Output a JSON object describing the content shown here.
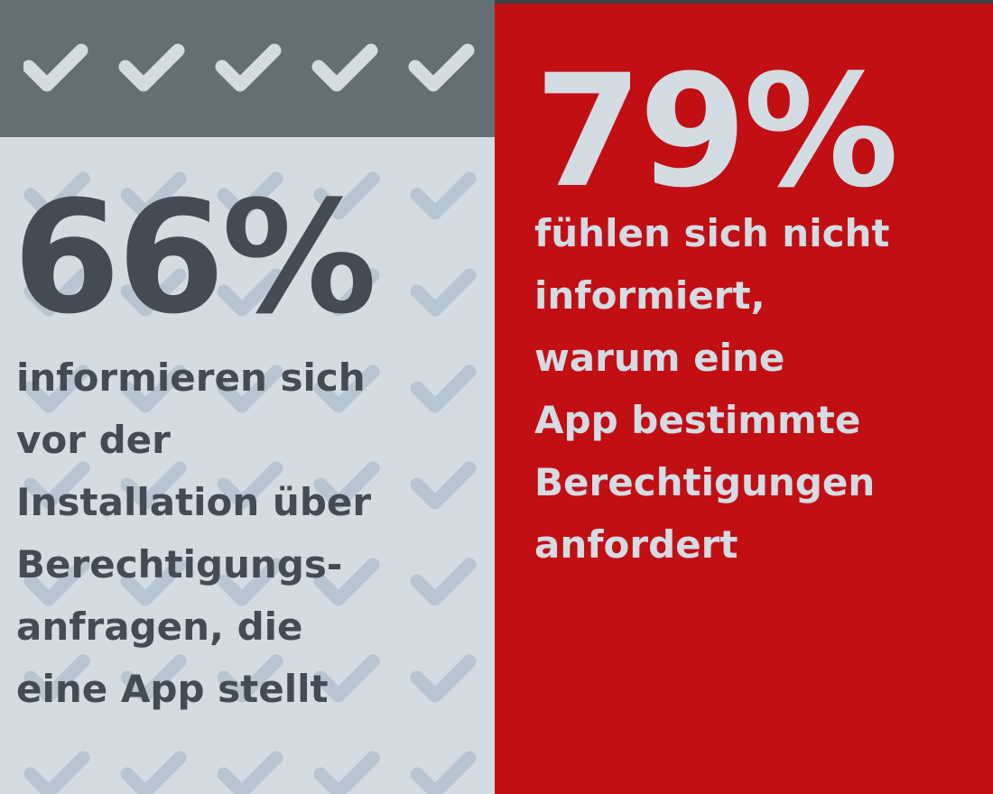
{
  "colors": {
    "left_panel_bg": "#d3dbe3",
    "left_header_bg": "#636e75",
    "left_text": "#434c54",
    "check_pattern": "#b7c4d1",
    "right_panel_bg": "#c10f14",
    "right_text": "#d3dbe3"
  },
  "icons": {
    "header_checks": "checkmark-icon",
    "background_checks": "checkmark-icon"
  },
  "left": {
    "percent": "66%",
    "lines": [
      "informieren sich",
      "vor der",
      "Installation über",
      "Berechtigungs-",
      "anfragen, die",
      "eine App stellt"
    ]
  },
  "right": {
    "percent": "79%",
    "lines": [
      "fühlen sich nicht",
      "informiert,",
      "warum eine",
      "App bestimmte",
      "Berechtigungen",
      "anfordert"
    ]
  }
}
